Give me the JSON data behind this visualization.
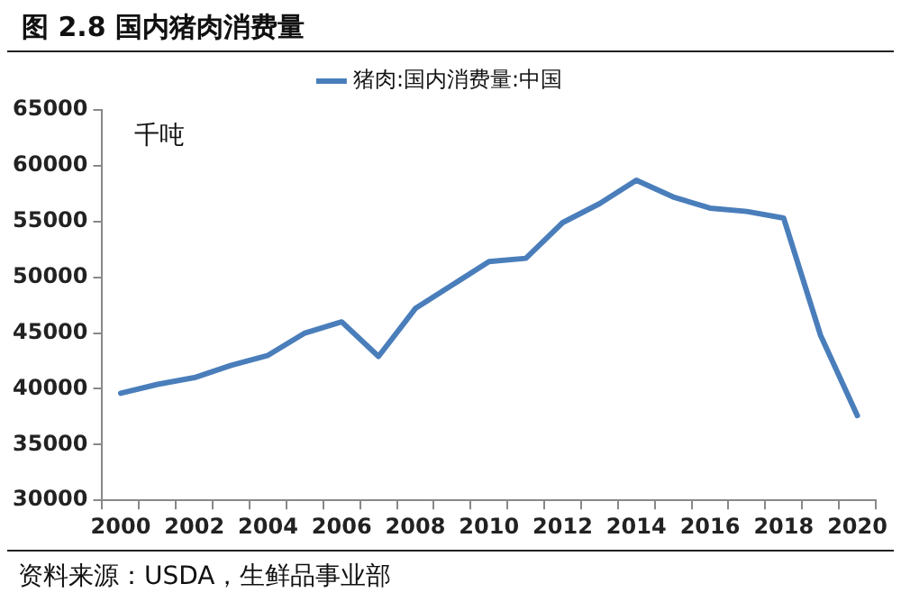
{
  "chart_data": {
    "type": "line",
    "title": "图 2.8  国内猪肉消费量",
    "ylabel": "千吨",
    "categories": [
      "2000",
      null,
      "2002",
      null,
      "2004",
      null,
      "2006",
      null,
      "2008",
      null,
      "2010",
      null,
      "2012",
      null,
      "2014",
      null,
      "2016",
      null,
      "2018",
      null,
      "2020"
    ],
    "series": [
      {
        "name": "猪肉:国内消费量:中国",
        "color": "#4a7ebb",
        "values": [
          39600,
          40400,
          41000,
          42100,
          43000,
          45000,
          46000,
          42900,
          47200,
          49300,
          51400,
          51700,
          54900,
          56600,
          58700,
          57200,
          56200,
          55900,
          55300,
          44800,
          37600
        ]
      }
    ],
    "ylim": [
      30000,
      65000
    ],
    "yticks": [
      30000,
      35000,
      40000,
      45000,
      50000,
      55000,
      60000,
      65000
    ],
    "grid": false,
    "legend": "top",
    "marker": "none",
    "line_style": "solid",
    "annotations": [
      "资料来源：USDA，生鲜品事业部"
    ]
  }
}
